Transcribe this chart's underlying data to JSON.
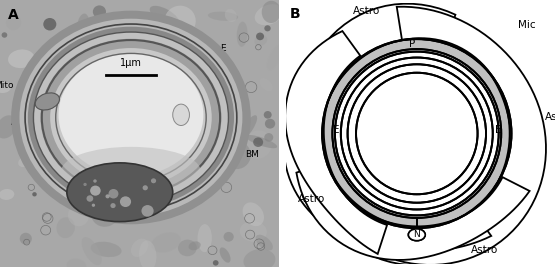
{
  "figsize": [
    5.55,
    2.67
  ],
  "dpi": 100,
  "panel_A_label": "A",
  "panel_B_label": "B",
  "scale_bar_label": "1μm",
  "line_color": "#000000",
  "gray_ring_color": "#b0b0b0",
  "white_color": "#ffffff"
}
